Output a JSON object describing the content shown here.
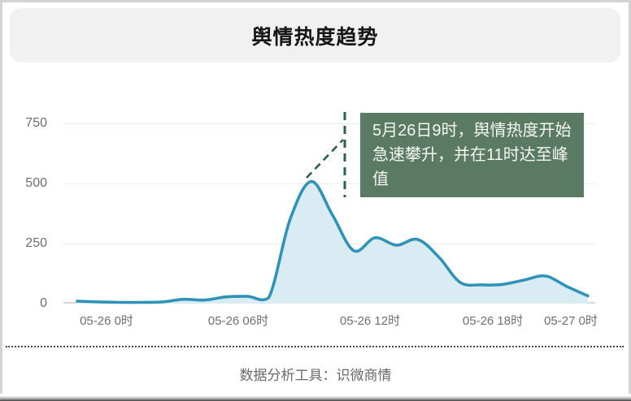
{
  "header": {
    "title": "舆情热度趋势"
  },
  "footer": {
    "source_label": "数据分析工具：识微商情"
  },
  "annotation": {
    "text": "5月26日9时，舆情热度开始急速攀升，并在11时达至峰值",
    "box_color": "#5a7a64",
    "text_color": "#f4f6f2",
    "callout_color": "#2d624a"
  },
  "chart_data": {
    "type": "area",
    "title": "舆情热度趋势",
    "x_hours": [
      0,
      1,
      2,
      3,
      4,
      5,
      6,
      7,
      8,
      9,
      10,
      11,
      12,
      13,
      14,
      15,
      16,
      17,
      18,
      19,
      20,
      21,
      22,
      23,
      24
    ],
    "values": [
      10,
      7,
      5,
      5,
      7,
      18,
      15,
      28,
      30,
      25,
      350,
      508,
      368,
      220,
      274,
      243,
      267,
      193,
      88,
      78,
      80,
      98,
      115,
      72,
      32
    ],
    "x_tick_labels": [
      "05-26 0时",
      "05-26 06时",
      "05-26 12时",
      "05-26 18时",
      "05-27 0时"
    ],
    "y_ticks": [
      "750",
      "500",
      "250",
      "0"
    ],
    "y_tick_values": [
      750,
      500,
      250,
      0
    ],
    "ylim": [
      0,
      750
    ],
    "grid": "horizontal-only",
    "legend": "none",
    "line_color": "#2f93b7",
    "fill_color": "#d9ecf3",
    "peak_note": {
      "rise_start": "05-26 9时",
      "peak": "05-26 11时"
    }
  }
}
